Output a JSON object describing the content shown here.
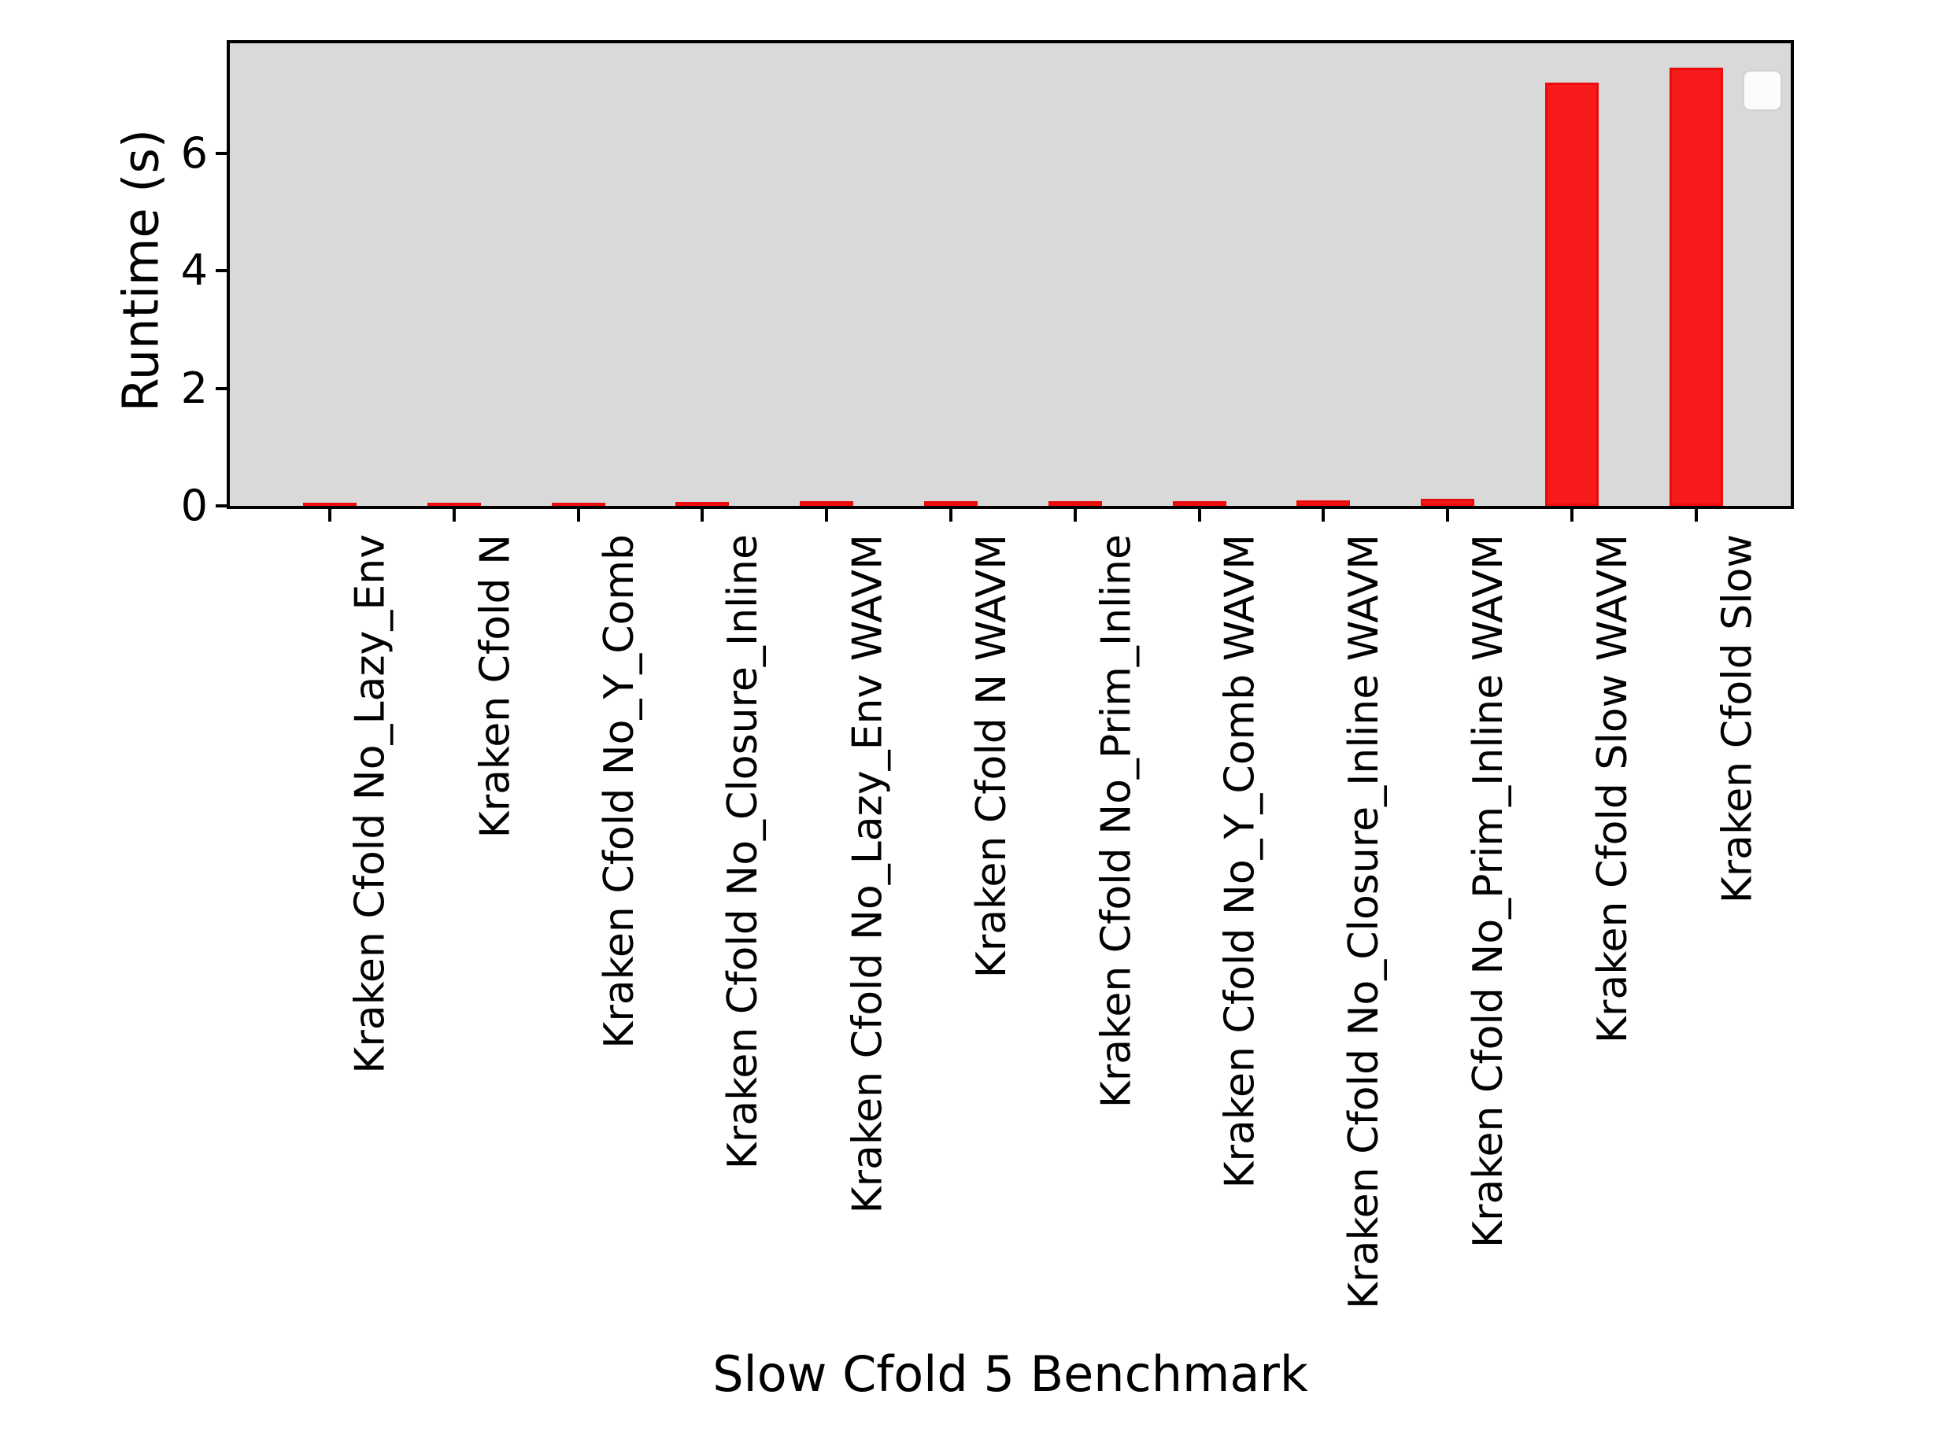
{
  "chart_data": {
    "type": "bar",
    "title": "",
    "xlabel": "Slow Cfold 5 Benchmark",
    "ylabel": "Runtime (s)",
    "categories": [
      "Kraken Cfold No_Lazy_Env",
      "Kraken Cfold N",
      "Kraken Cfold No_Y_Comb",
      "Kraken Cfold No_Closure_Inline",
      "Kraken Cfold No_Lazy_Env WAVM",
      "Kraken Cfold N WAVM",
      "Kraken Cfold No_Prim_Inline",
      "Kraken Cfold No_Y_Comb WAVM",
      "Kraken Cfold No_Closure_Inline WAVM",
      "Kraken Cfold No_Prim_Inline WAVM",
      "Kraken Cfold Slow WAVM",
      "Kraken Cfold Slow"
    ],
    "values": [
      0.05,
      0.05,
      0.05,
      0.07,
      0.08,
      0.08,
      0.08,
      0.08,
      0.09,
      0.12,
      7.2,
      7.45
    ],
    "yticks": [
      0,
      2,
      4,
      6
    ],
    "ylim": [
      0,
      7.87
    ],
    "grid": false,
    "bar_color": "#f71b1b",
    "bar_edge_color": "#ea0c0c",
    "plot_bg_color": "#d9d9d9",
    "legend": {
      "visible": true,
      "position": "upper right",
      "entries": []
    }
  }
}
